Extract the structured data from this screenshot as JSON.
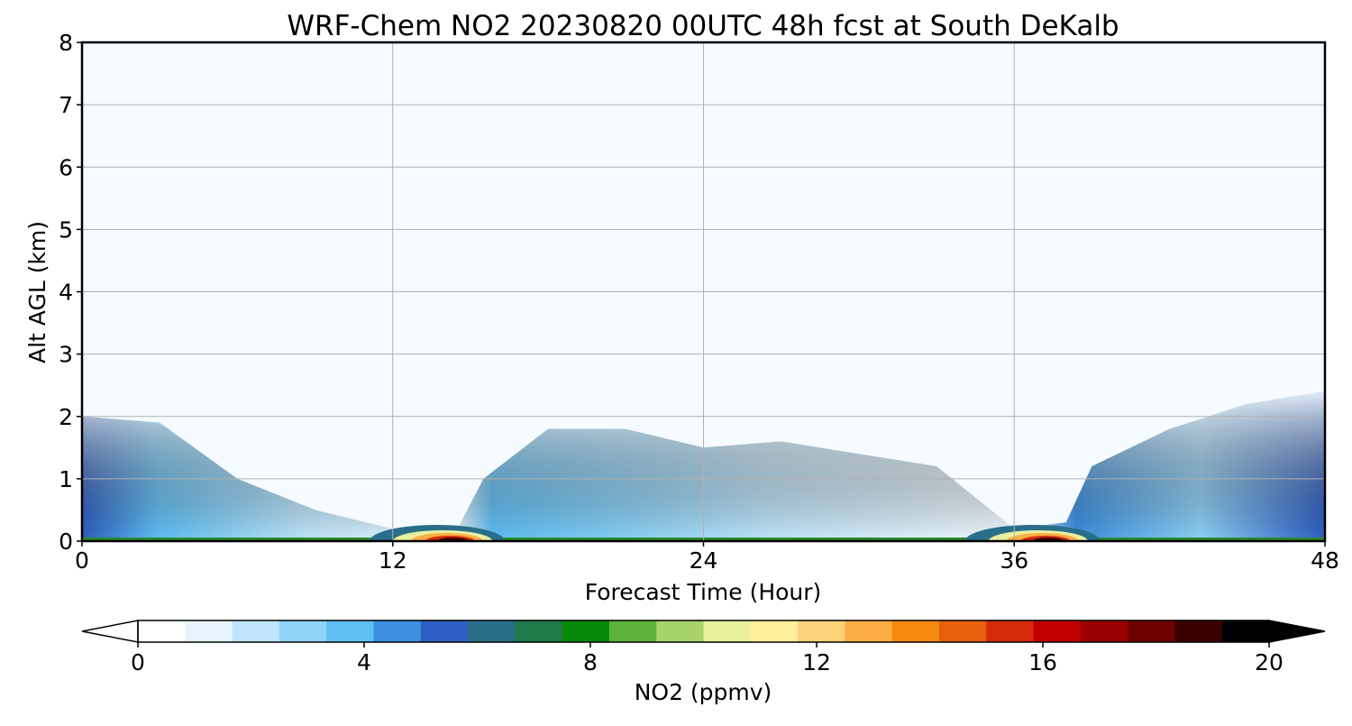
{
  "chart_data": {
    "type": "heatmap",
    "title": "WRF-Chem NO2  20230820 00UTC 48h fcst at South DeKalb",
    "xlabel": "Forecast Time (Hour)",
    "ylabel": "Alt AGL (km)",
    "xlim": [
      0,
      48
    ],
    "ylim": [
      0,
      8
    ],
    "x_ticks": [
      "0",
      "12",
      "24",
      "36",
      "48"
    ],
    "x_tick_values": [
      0,
      12,
      24,
      36,
      48
    ],
    "y_ticks": [
      "0",
      "1",
      "2",
      "3",
      "4",
      "5",
      "6",
      "7",
      "8"
    ],
    "y_tick_values": [
      0,
      1,
      2,
      3,
      4,
      5,
      6,
      7,
      8
    ],
    "grid": true,
    "colorbar": {
      "label": "NO2  (ppmv)",
      "ticks": [
        "0",
        "4",
        "8",
        "12",
        "16",
        "20"
      ],
      "tick_values": [
        0,
        4,
        8,
        12,
        16,
        20
      ],
      "range": [
        0,
        20
      ],
      "extend": "both",
      "colors": [
        "#ffffff",
        "#e6f4fd",
        "#bfe6fb",
        "#8fd3f8",
        "#5fbff5",
        "#3d8fe0",
        "#2f5fc4",
        "#2a6f8a",
        "#1f7a4a",
        "#078a07",
        "#5db33a",
        "#a6d46a",
        "#e8f0a0",
        "#ffef9a",
        "#fcd27a",
        "#fbae44",
        "#f78a0c",
        "#e8600e",
        "#d42a0a",
        "#c20000",
        "#9a0000",
        "#6e0000",
        "#3a0000",
        "#000000"
      ]
    },
    "series": [
      {
        "x": [
          0,
          3,
          6,
          9,
          12,
          14.5,
          15.5,
          18,
          21,
          24,
          27,
          30,
          33,
          36,
          38,
          39,
          42,
          45,
          48
        ],
        "y": [
          2.0,
          1.9,
          1.0,
          0.5,
          0.2,
          0.2,
          1.0,
          1.8,
          1.8,
          1.5,
          1.6,
          1.4,
          1.2,
          0.2,
          0.3,
          1.2,
          1.8,
          2.2,
          2.4
        ]
      }
    ],
    "no2_surface_peaks_ppmv": [
      {
        "hour": 14.5,
        "value": 19
      },
      {
        "hour": 37.5,
        "value": 19
      }
    ]
  }
}
